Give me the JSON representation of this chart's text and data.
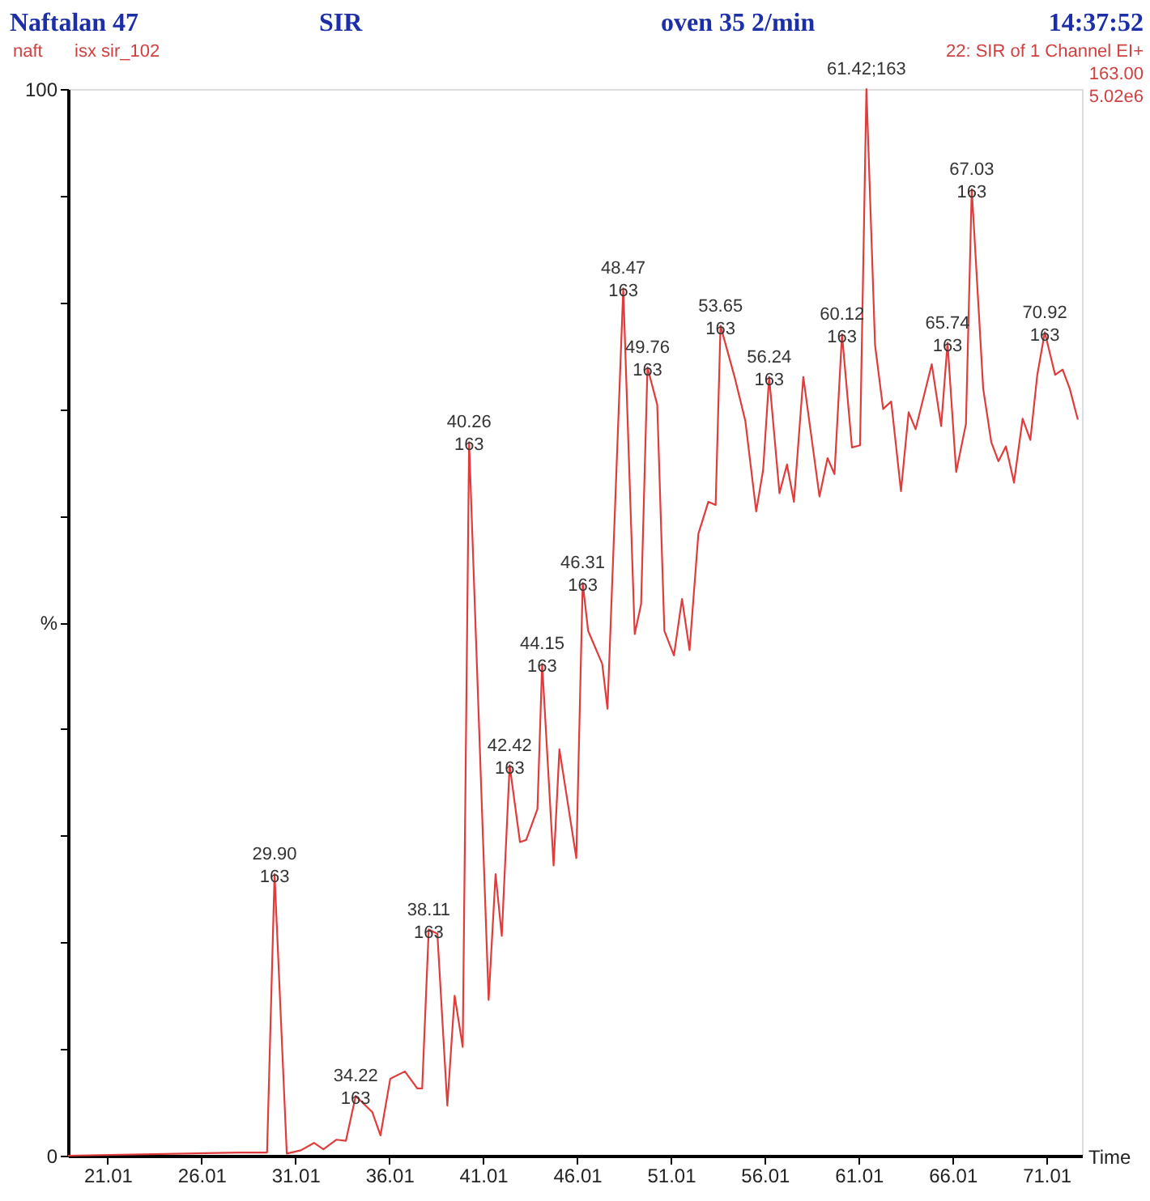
{
  "chart_data": {
    "type": "line",
    "title": "Naftalan  47",
    "annotations": [
      "SIR",
      "oven 35 2/min",
      "14:37:52",
      "naft",
      "isx sir_102",
      "22: SIR of 1 Channel EI+",
      "163.00",
      "5.02e6",
      {
        "text": "29.90\n163",
        "x": 29.9,
        "y": 26.4
      },
      {
        "text": "34.22\n163",
        "x": 34.22,
        "y": 5.6
      },
      {
        "text": "38.11\n163",
        "x": 38.11,
        "y": 21.2
      },
      {
        "text": "40.26\n163",
        "x": 40.26,
        "y": 66.9
      },
      {
        "text": "42.42\n163",
        "x": 42.42,
        "y": 36.6
      },
      {
        "text": "44.15\n163",
        "x": 44.15,
        "y": 46.1
      },
      {
        "text": "46.31\n163",
        "x": 46.31,
        "y": 53.7
      },
      {
        "text": "48.47\n163",
        "x": 48.47,
        "y": 81.3
      },
      {
        "text": "49.76\n163",
        "x": 49.76,
        "y": 73.9
      },
      {
        "text": "53.65\n163",
        "x": 53.65,
        "y": 77.8
      },
      {
        "text": "56.24\n163",
        "x": 56.24,
        "y": 73.0
      },
      {
        "text": "60.12\n163",
        "x": 60.12,
        "y": 77.0
      },
      {
        "text": "61.42;163",
        "x": 61.42,
        "y": 100
      },
      {
        "text": "65.74\n163",
        "x": 65.74,
        "y": 76.2
      },
      {
        "text": "67.03\n163",
        "x": 67.03,
        "y": 90.6
      },
      {
        "text": "70.92\n163",
        "x": 70.92,
        "y": 77.2
      }
    ],
    "xlabel": "Time",
    "x": [
      18.9,
      28.0,
      29.5,
      29.9,
      30.55,
      31.3,
      32.0,
      32.5,
      33.2,
      33.7,
      34.22,
      35.1,
      35.54,
      36.06,
      36.84,
      37.5,
      37.76,
      38.11,
      38.57,
      39.1,
      39.49,
      39.92,
      40.26,
      41.3,
      41.67,
      42.0,
      42.42,
      42.97,
      43.3,
      43.9,
      44.15,
      44.76,
      45.07,
      45.97,
      46.31,
      46.6,
      47.35,
      47.63,
      48.47,
      49.08,
      49.42,
      49.76,
      50.28,
      50.66,
      51.17,
      51.6,
      52.0,
      52.47,
      53.0,
      53.39,
      53.65,
      54.4,
      54.97,
      55.55,
      55.92,
      56.24,
      56.79,
      57.19,
      57.56,
      58.06,
      58.92,
      59.35,
      59.72,
      60.12,
      60.65,
      61.08,
      61.42,
      61.88,
      62.31,
      62.74,
      63.26,
      63.67,
      64.04,
      64.9,
      65.4,
      65.74,
      66.2,
      66.72,
      67.03,
      67.64,
      68.07,
      68.45,
      68.85,
      69.28,
      69.74,
      70.15,
      70.52,
      70.92,
      71.47,
      71.87,
      72.25,
      72.68
    ],
    "series": [
      {
        "color": "#e03c3c",
        "values": [
          0,
          0.3,
          0.3,
          26.4,
          0.2,
          0.5,
          1.2,
          0.6,
          1.5,
          1.4,
          5.6,
          4.1,
          1.9,
          7.2,
          7.9,
          6.3,
          6.3,
          21.2,
          20.8,
          4.7,
          15.0,
          10.2,
          66.9,
          14.6,
          26.4,
          20.6,
          36.6,
          29.4,
          29.6,
          32.5,
          46.1,
          27.2,
          38.1,
          27.9,
          53.7,
          49.2,
          46.1,
          41.9,
          81.3,
          48.9,
          51.7,
          73.9,
          70.4,
          49.2,
          46.9,
          52.2,
          47.4,
          58.3,
          61.3,
          61.0,
          77.8,
          73.0,
          68.9,
          60.4,
          64.3,
          73.0,
          62.1,
          64.8,
          61.3,
          73.0,
          61.8,
          65.4,
          63.9,
          77.0,
          66.4,
          66.6,
          100,
          76.0,
          70.0,
          70.7,
          62.3,
          69.7,
          68.1,
          74.2,
          68.4,
          76.2,
          64.1,
          68.6,
          90.6,
          71.9,
          66.9,
          65.1,
          66.5,
          63.1,
          69.1,
          67.1,
          73.2,
          77.2,
          73.2,
          73.7,
          71.9,
          69.0
        ]
      }
    ],
    "xlim": [
      18.9,
      72.9
    ],
    "xticks": [
      21.01,
      26.01,
      31.01,
      36.01,
      41.01,
      46.01,
      51.01,
      56.01,
      61.01,
      66.01,
      71.01
    ],
    "ylim": [
      0,
      100
    ],
    "yticks": [
      0,
      {
        "value": 10,
        "label": null
      },
      {
        "value": 20,
        "label": null
      },
      {
        "value": 30,
        "label": null
      },
      {
        "value": 40,
        "label": null
      },
      {
        "value": 50,
        "label": "%"
      },
      {
        "value": 60,
        "label": null
      },
      {
        "value": 70,
        "label": null
      },
      {
        "value": 80,
        "label": null
      },
      {
        "value": 90,
        "label": null
      },
      100
    ],
    "grid": false,
    "marker": "none",
    "line_style": "solid"
  }
}
